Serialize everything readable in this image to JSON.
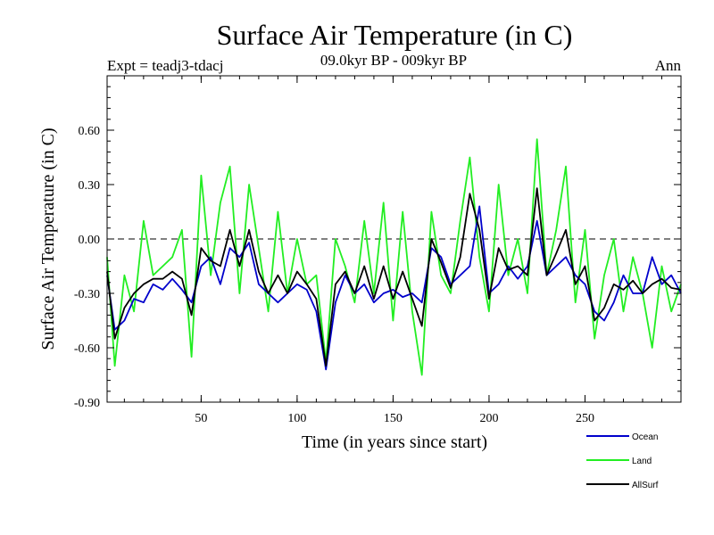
{
  "chart_data": {
    "type": "line",
    "title": "Surface Air Temperature (in C)",
    "subtitle": "09.0kyr BP - 009kyr BP",
    "expt_label": "Expt = teadj3-tdacj",
    "period_label": "Ann",
    "xlabel": "Time (in years since start)",
    "ylabel": "Surface Air Temperature (in C)",
    "xlim": [
      1,
      300
    ],
    "ylim": [
      -0.9,
      0.9
    ],
    "x_ticks": [
      50,
      100,
      150,
      200,
      250
    ],
    "x_tick_labels": [
      "50",
      "100",
      "150",
      "200",
      "250"
    ],
    "y_ticks": [
      -0.9,
      -0.6,
      -0.3,
      0.0,
      0.3,
      0.6
    ],
    "y_tick_labels": [
      "-0.90",
      "-0.60",
      "-0.30",
      "0.00",
      "0.30",
      "0.60"
    ],
    "zero_line": "dashed",
    "legend_position": "bottom-right",
    "x_step": 5,
    "series": [
      {
        "name": "Ocean",
        "color": "#0000cc",
        "x": [
          1,
          5,
          10,
          15,
          20,
          25,
          30,
          35,
          40,
          45,
          50,
          55,
          60,
          65,
          70,
          75,
          80,
          85,
          90,
          95,
          100,
          105,
          110,
          115,
          120,
          125,
          130,
          135,
          140,
          145,
          150,
          155,
          160,
          165,
          170,
          175,
          180,
          185,
          190,
          195,
          200,
          205,
          210,
          215,
          220,
          225,
          230,
          235,
          240,
          245,
          250,
          255,
          260,
          265,
          270,
          275,
          280,
          285,
          290,
          295,
          300
        ],
        "values": [
          -0.2,
          -0.5,
          -0.45,
          -0.33,
          -0.35,
          -0.25,
          -0.28,
          -0.22,
          -0.28,
          -0.35,
          -0.15,
          -0.1,
          -0.25,
          -0.05,
          -0.1,
          -0.02,
          -0.25,
          -0.3,
          -0.35,
          -0.3,
          -0.25,
          -0.28,
          -0.4,
          -0.72,
          -0.35,
          -0.2,
          -0.3,
          -0.25,
          -0.35,
          -0.3,
          -0.28,
          -0.32,
          -0.3,
          -0.35,
          -0.05,
          -0.1,
          -0.25,
          -0.2,
          -0.15,
          0.18,
          -0.3,
          -0.25,
          -0.15,
          -0.22,
          -0.15,
          0.1,
          -0.2,
          -0.15,
          -0.1,
          -0.2,
          -0.25,
          -0.4,
          -0.45,
          -0.35,
          -0.2,
          -0.3,
          -0.3,
          -0.1,
          -0.25,
          -0.2,
          -0.3
        ]
      },
      {
        "name": "Land",
        "color": "#22ee22",
        "x": [
          1,
          5,
          10,
          15,
          20,
          25,
          30,
          35,
          40,
          45,
          50,
          55,
          60,
          65,
          70,
          75,
          80,
          85,
          90,
          95,
          100,
          105,
          110,
          115,
          120,
          125,
          130,
          135,
          140,
          145,
          150,
          155,
          160,
          165,
          170,
          175,
          180,
          185,
          190,
          195,
          200,
          205,
          210,
          215,
          220,
          225,
          230,
          235,
          240,
          245,
          250,
          255,
          260,
          265,
          270,
          275,
          280,
          285,
          290,
          295,
          300
        ],
        "values": [
          -0.1,
          -0.7,
          -0.2,
          -0.4,
          0.1,
          -0.2,
          -0.15,
          -0.1,
          0.05,
          -0.65,
          0.35,
          -0.2,
          0.2,
          0.4,
          -0.3,
          0.3,
          -0.05,
          -0.4,
          0.15,
          -0.3,
          0.0,
          -0.25,
          -0.2,
          -0.68,
          0.0,
          -0.15,
          -0.35,
          0.1,
          -0.3,
          0.2,
          -0.45,
          0.15,
          -0.4,
          -0.75,
          0.15,
          -0.2,
          -0.3,
          0.1,
          0.45,
          -0.1,
          -0.4,
          0.3,
          -0.2,
          0.0,
          -0.3,
          0.55,
          -0.2,
          0.05,
          0.4,
          -0.35,
          0.05,
          -0.55,
          -0.2,
          0.0,
          -0.4,
          -0.1,
          -0.3,
          -0.6,
          -0.15,
          -0.4,
          -0.25
        ]
      },
      {
        "name": "AllSurf",
        "color": "#000000",
        "x": [
          1,
          5,
          10,
          15,
          20,
          25,
          30,
          35,
          40,
          45,
          50,
          55,
          60,
          65,
          70,
          75,
          80,
          85,
          90,
          95,
          100,
          105,
          110,
          115,
          120,
          125,
          130,
          135,
          140,
          145,
          150,
          155,
          160,
          165,
          170,
          175,
          180,
          185,
          190,
          195,
          200,
          205,
          210,
          215,
          220,
          225,
          230,
          235,
          240,
          245,
          250,
          255,
          260,
          265,
          270,
          275,
          280,
          285,
          290,
          295,
          300
        ],
        "values": [
          -0.18,
          -0.55,
          -0.38,
          -0.3,
          -0.25,
          -0.22,
          -0.22,
          -0.18,
          -0.22,
          -0.42,
          -0.05,
          -0.12,
          -0.15,
          0.05,
          -0.15,
          0.05,
          -0.18,
          -0.3,
          -0.2,
          -0.3,
          -0.18,
          -0.25,
          -0.33,
          -0.7,
          -0.25,
          -0.18,
          -0.3,
          -0.15,
          -0.33,
          -0.15,
          -0.33,
          -0.18,
          -0.33,
          -0.48,
          0.0,
          -0.13,
          -0.27,
          -0.1,
          0.25,
          0.05,
          -0.33,
          -0.05,
          -0.17,
          -0.15,
          -0.2,
          0.28,
          -0.2,
          -0.08,
          0.05,
          -0.25,
          -0.15,
          -0.45,
          -0.38,
          -0.25,
          -0.28,
          -0.23,
          -0.3,
          -0.25,
          -0.22,
          -0.27,
          -0.28
        ]
      }
    ]
  }
}
